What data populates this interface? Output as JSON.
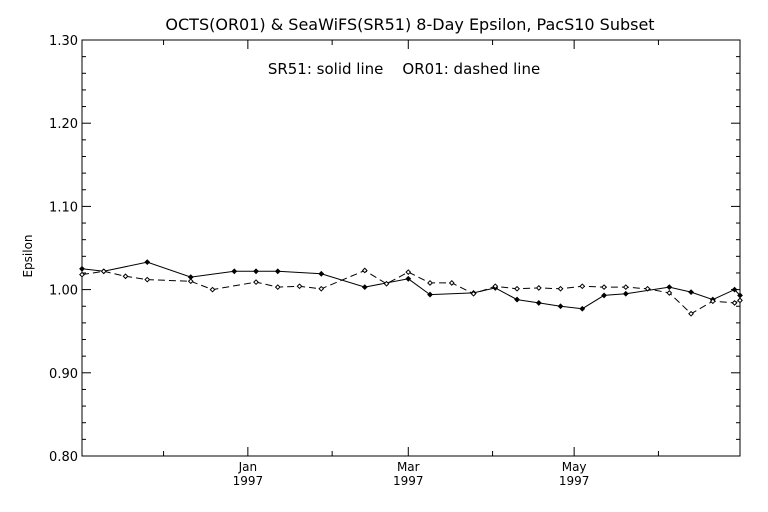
{
  "chart_data": {
    "type": "line",
    "title": "OCTS(OR01) & SeaWiFS(SR51) 8-Day Epsilon, PacS10 Subset",
    "annotation": "SR51: solid line    OR01: dashed line",
    "xlabel": "",
    "ylabel": "Epsilon",
    "ylim": [
      0.8,
      1.3
    ],
    "yticks": [
      "0.80",
      "0.90",
      "1.00",
      "1.10",
      "1.20",
      "1.30"
    ],
    "xlim": [
      "1996-11-01",
      "1997-07-01"
    ],
    "xticks": [
      {
        "date": "1997-01-01",
        "month": "Jan",
        "year": "1997"
      },
      {
        "date": "1997-03-01",
        "month": "Mar",
        "year": "1997"
      },
      {
        "date": "1997-05-01",
        "month": "May",
        "year": "1997"
      }
    ],
    "minor_xticks": [
      "1996-12-01",
      "1997-02-01",
      "1997-04-01",
      "1997-06-01"
    ],
    "grid": false,
    "series": [
      {
        "name": "SR51",
        "style": "solid",
        "x": [
          "1996-11-01",
          "1996-11-09",
          "1996-11-25",
          "1996-12-11",
          "1996-12-27",
          "1997-01-04",
          "1997-01-12",
          "1997-01-28",
          "1997-02-13",
          "1997-03-01",
          "1997-03-09",
          "1997-03-25",
          "1997-04-02",
          "1997-04-10",
          "1997-04-18",
          "1997-04-26",
          "1997-05-04",
          "1997-05-12",
          "1997-05-20",
          "1997-06-05",
          "1997-06-13",
          "1997-06-21",
          "1997-06-29",
          "1997-07-01"
        ],
        "y": [
          1.025,
          1.022,
          1.033,
          1.015,
          1.022,
          1.022,
          1.022,
          1.019,
          1.003,
          1.013,
          0.994,
          0.996,
          1.002,
          0.988,
          0.984,
          0.98,
          0.977,
          0.993,
          0.995,
          1.003,
          0.997,
          0.988,
          1.0,
          0.993
        ]
      },
      {
        "name": "OR01",
        "style": "dashed",
        "x": [
          "1996-11-01",
          "1996-11-09",
          "1996-11-17",
          "1996-11-25",
          "1996-12-11",
          "1996-12-19",
          "1997-01-04",
          "1997-01-12",
          "1997-01-20",
          "1997-01-28",
          "1997-02-13",
          "1997-02-21",
          "1997-03-01",
          "1997-03-09",
          "1997-03-17",
          "1997-03-25",
          "1997-04-02",
          "1997-04-10",
          "1997-04-18",
          "1997-04-26",
          "1997-05-04",
          "1997-05-12",
          "1997-05-20",
          "1997-05-28",
          "1997-06-05",
          "1997-06-13",
          "1997-06-21",
          "1997-06-29",
          "1997-07-01"
        ],
        "y": [
          1.018,
          1.022,
          1.016,
          1.012,
          1.01,
          1.0,
          1.009,
          1.003,
          1.004,
          1.001,
          1.023,
          1.007,
          1.021,
          1.008,
          1.008,
          0.995,
          1.004,
          1.001,
          1.002,
          1.001,
          1.004,
          1.003,
          1.003,
          1.001,
          0.996,
          0.971,
          0.986,
          0.984,
          0.987
        ]
      }
    ]
  }
}
